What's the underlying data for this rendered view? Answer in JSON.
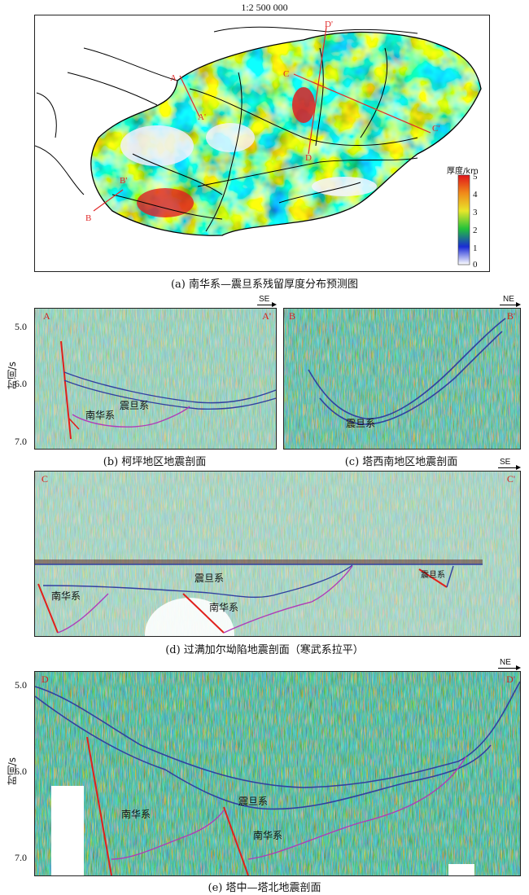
{
  "map": {
    "scale": "1:2 500 000",
    "caption": "(a) 南华系—震旦系残留厚度分布预测图",
    "legend": {
      "title": "厚度/km",
      "ticks": [
        "5",
        "4",
        "3",
        "2",
        "1",
        "0"
      ]
    },
    "section_labels": [
      "D'",
      "C",
      "A",
      "A'",
      "C'",
      "D",
      "B'",
      "B"
    ]
  },
  "panel_b": {
    "caption": "(b) 柯坪地区地震剖面",
    "left_label": "A",
    "right_label": "A'",
    "direction": "SE",
    "unit": "时间/s",
    "ticks": [
      "5.0",
      "6.0",
      "7.0"
    ],
    "layer_upper": "震旦系",
    "layer_lower": "南华系"
  },
  "panel_c": {
    "caption": "(c) 塔西南地区地震剖面",
    "left_label": "B",
    "right_label": "B'",
    "direction": "NE",
    "layer": "震旦系"
  },
  "panel_d": {
    "caption": "(d) 过满加尔坳陷地震剖面（寒武系拉平）",
    "left_label": "C",
    "right_label": "C'",
    "direction": "SE",
    "layer_upper": "震旦系",
    "layer_lower_left": "南华系",
    "layer_lower_mid": "南华系",
    "layer_right": "震旦系"
  },
  "panel_e": {
    "caption": "(e) 塔中—塔北地震剖面",
    "left_label": "D",
    "right_label": "D'",
    "direction": "NE",
    "unit": "时间/s",
    "ticks": [
      "5.0",
      "6.0",
      "7.0"
    ],
    "layer_upper": "震旦系",
    "layer_lower_left": "南华系",
    "layer_lower_mid": "南华系"
  },
  "colors": {
    "fault": "#e0201c",
    "horizon_upper": "#3340a0",
    "horizon_lower": "#b03cb8"
  }
}
